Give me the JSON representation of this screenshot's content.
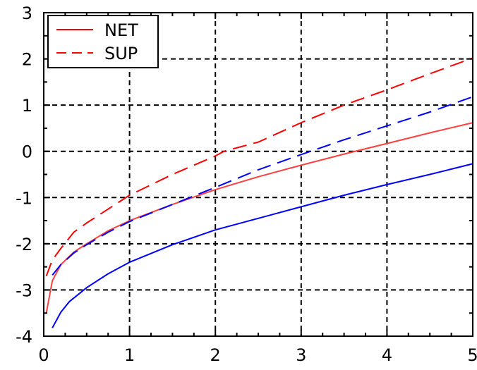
{
  "chart_data": {
    "type": "line",
    "title": "",
    "xlabel": "",
    "ylabel": "",
    "xlim": [
      0,
      5
    ],
    "ylim": [
      -4,
      3
    ],
    "xticks": [
      "0",
      "1",
      "2",
      "3",
      "4",
      "5"
    ],
    "yticks": [
      "3",
      "2",
      "1",
      "0",
      "-1",
      "-2",
      "-3",
      "-4"
    ],
    "grid": true,
    "legend": {
      "position": "top-left",
      "entries": [
        {
          "label": "NET",
          "color": "#ff0000",
          "dash": "solid"
        },
        {
          "label": "SUP",
          "color": "#ff0000",
          "dash": "dashed"
        }
      ]
    },
    "series": [
      {
        "color": "#ff4040",
        "dash": "solid",
        "x": [
          0.03,
          0.1,
          0.2,
          0.35,
          0.5,
          0.75,
          1.0,
          1.5,
          2.0,
          2.5,
          3.0,
          3.5,
          4.0,
          4.5,
          5.0
        ],
        "y": [
          -3.5,
          -2.8,
          -2.45,
          -2.18,
          -2.0,
          -1.72,
          -1.5,
          -1.15,
          -0.83,
          -0.55,
          -0.3,
          -0.06,
          0.17,
          0.4,
          0.62
        ]
      },
      {
        "color": "#ff0000",
        "dash": "dashed",
        "x": [
          0.03,
          0.1,
          0.2,
          0.35,
          0.5,
          0.75,
          1.0,
          1.5,
          2.0,
          2.1,
          2.5,
          3.0,
          3.5,
          4.0,
          4.5,
          5.0
        ],
        "y": [
          -2.7,
          -2.35,
          -2.1,
          -1.75,
          -1.55,
          -1.25,
          -0.95,
          -0.5,
          -0.1,
          0.0,
          0.2,
          0.62,
          1.0,
          1.33,
          1.68,
          2.02
        ]
      },
      {
        "color": "#0000ff",
        "dash": "solid",
        "x": [
          0.1,
          0.2,
          0.3,
          0.5,
          0.75,
          1.0,
          1.5,
          2.0,
          2.5,
          3.0,
          3.5,
          4.0,
          4.5,
          5.0
        ],
        "y": [
          -3.82,
          -3.48,
          -3.25,
          -2.95,
          -2.65,
          -2.4,
          -2.02,
          -1.7,
          -1.45,
          -1.2,
          -0.95,
          -0.72,
          -0.5,
          -0.27
        ]
      },
      {
        "color": "#0000ff",
        "dash": "dashed",
        "x": [
          0.1,
          0.2,
          0.35,
          0.5,
          0.75,
          1.0,
          1.5,
          2.0,
          2.5,
          3.0,
          3.5,
          4.0,
          4.5,
          5.0
        ],
        "y": [
          -2.68,
          -2.45,
          -2.2,
          -2.02,
          -1.75,
          -1.52,
          -1.15,
          -0.78,
          -0.4,
          -0.07,
          0.25,
          0.55,
          0.85,
          1.18
        ]
      }
    ]
  }
}
